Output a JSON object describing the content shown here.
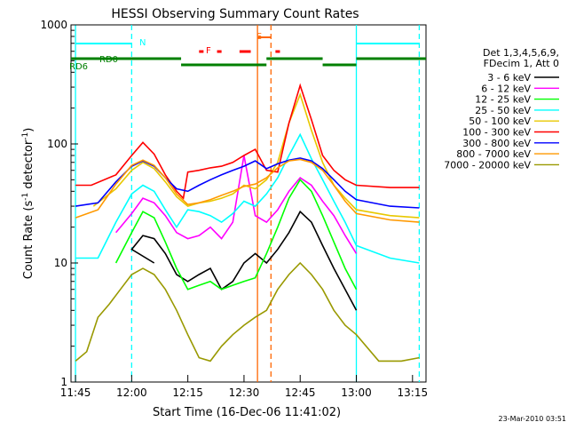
{
  "chart_data": {
    "type": "line",
    "title": "HESSI Observing Summary Count Rates",
    "xlabel": "Start Time (16-Dec-06 11:41:02)",
    "ylabel_main": "Count Rate (s",
    "ylabel_sup1": "-1",
    "ylabel_mid": " detector",
    "ylabel_sup2": "-1",
    "ylabel_end": ")",
    "yscale": "log",
    "ylim": [
      1,
      1000
    ],
    "xlim_minutes": [
      11.73,
      13.31
    ],
    "x_ticks": [
      {
        "label": "11:45",
        "t": 11.75
      },
      {
        "label": "12:00",
        "t": 12.0
      },
      {
        "label": "12:15",
        "t": 12.25
      },
      {
        "label": "12:30",
        "t": 12.5
      },
      {
        "label": "12:45",
        "t": 12.75
      },
      {
        "label": "13:00",
        "t": 13.0
      },
      {
        "label": "13:15",
        "t": 13.25
      }
    ],
    "y_ticks": [
      {
        "label": "1",
        "v": 1
      },
      {
        "label": "10",
        "v": 10
      },
      {
        "label": "100",
        "v": 100
      },
      {
        "label": "1000",
        "v": 1000
      }
    ],
    "legend_header": [
      "Det 1,3,4,5,6,9,",
      "FDecim 1, Att 0"
    ],
    "series": [
      {
        "name": "3 - 6 keV",
        "color": "#000000",
        "points": [
          [
            12.1,
            10
          ],
          [
            12.0,
            13
          ],
          [
            12.05,
            17
          ],
          [
            12.1,
            16
          ],
          [
            12.15,
            12
          ],
          [
            12.2,
            8
          ],
          [
            12.25,
            7
          ],
          [
            12.3,
            8
          ],
          [
            12.35,
            9
          ],
          [
            12.4,
            6
          ],
          [
            12.45,
            7
          ],
          [
            12.5,
            10
          ],
          [
            12.55,
            12
          ],
          [
            12.6,
            10
          ],
          [
            12.65,
            13
          ],
          [
            12.7,
            18
          ],
          [
            12.75,
            27
          ],
          [
            12.8,
            22
          ],
          [
            12.85,
            14
          ],
          [
            12.9,
            9
          ],
          [
            12.95,
            6
          ],
          [
            13.0,
            4
          ]
        ]
      },
      {
        "name": "6 - 12 keV",
        "color": "#ff00ff",
        "points": [
          [
            11.93,
            18
          ],
          [
            12.0,
            26
          ],
          [
            12.05,
            35
          ],
          [
            12.1,
            32
          ],
          [
            12.15,
            25
          ],
          [
            12.2,
            18
          ],
          [
            12.25,
            16
          ],
          [
            12.3,
            17
          ],
          [
            12.35,
            20
          ],
          [
            12.4,
            16
          ],
          [
            12.45,
            22
          ],
          [
            12.5,
            80
          ],
          [
            12.55,
            25
          ],
          [
            12.6,
            22
          ],
          [
            12.65,
            28
          ],
          [
            12.7,
            40
          ],
          [
            12.75,
            52
          ],
          [
            12.8,
            45
          ],
          [
            12.85,
            33
          ],
          [
            12.9,
            25
          ],
          [
            12.95,
            17
          ],
          [
            13.0,
            12
          ]
        ]
      },
      {
        "name": "12 - 25 keV",
        "color": "#00ff00",
        "points": [
          [
            11.93,
            10
          ],
          [
            12.0,
            18
          ],
          [
            12.05,
            27
          ],
          [
            12.1,
            24
          ],
          [
            12.15,
            15
          ],
          [
            12.2,
            9
          ],
          [
            12.25,
            6
          ],
          [
            12.3,
            6.5
          ],
          [
            12.35,
            7
          ],
          [
            12.4,
            6
          ],
          [
            12.45,
            6.5
          ],
          [
            12.5,
            7
          ],
          [
            12.55,
            7.5
          ],
          [
            12.6,
            12
          ],
          [
            12.65,
            20
          ],
          [
            12.7,
            35
          ],
          [
            12.75,
            50
          ],
          [
            12.8,
            40
          ],
          [
            12.85,
            25
          ],
          [
            12.9,
            15
          ],
          [
            12.95,
            9
          ],
          [
            13.0,
            6
          ]
        ]
      },
      {
        "name": "25 - 50 keV",
        "color": "#00ffff",
        "points": [
          [
            11.75,
            11
          ],
          [
            11.85,
            11
          ],
          [
            11.93,
            22
          ],
          [
            12.0,
            38
          ],
          [
            12.05,
            45
          ],
          [
            12.1,
            40
          ],
          [
            12.15,
            28
          ],
          [
            12.2,
            20
          ],
          [
            12.25,
            28
          ],
          [
            12.3,
            27
          ],
          [
            12.35,
            25
          ],
          [
            12.4,
            22
          ],
          [
            12.45,
            26
          ],
          [
            12.5,
            33
          ],
          [
            12.55,
            30
          ],
          [
            12.6,
            38
          ],
          [
            12.65,
            52
          ],
          [
            12.7,
            80
          ],
          [
            12.75,
            120
          ],
          [
            12.8,
            75
          ],
          [
            12.85,
            50
          ],
          [
            12.9,
            33
          ],
          [
            12.95,
            22
          ],
          [
            13.0,
            14
          ],
          [
            13.15,
            11
          ],
          [
            13.28,
            10
          ]
        ]
      },
      {
        "name": "50 - 100 keV",
        "color": "#e8c800",
        "points": [
          [
            11.83,
            30
          ],
          [
            11.93,
            42
          ],
          [
            12.0,
            60
          ],
          [
            12.05,
            70
          ],
          [
            12.1,
            62
          ],
          [
            12.15,
            48
          ],
          [
            12.2,
            36
          ],
          [
            12.25,
            30
          ],
          [
            12.3,
            32
          ],
          [
            12.35,
            33
          ],
          [
            12.4,
            35
          ],
          [
            12.45,
            38
          ],
          [
            12.5,
            45
          ],
          [
            12.55,
            42
          ],
          [
            12.6,
            50
          ],
          [
            12.65,
            70
          ],
          [
            12.7,
            150
          ],
          [
            12.75,
            260
          ],
          [
            12.8,
            130
          ],
          [
            12.85,
            70
          ],
          [
            12.9,
            45
          ],
          [
            12.95,
            35
          ],
          [
            13.0,
            28
          ],
          [
            13.15,
            25
          ],
          [
            13.28,
            24
          ]
        ]
      },
      {
        "name": "100 - 300 keV",
        "color": "#ff0000",
        "points": [
          [
            11.75,
            45
          ],
          [
            11.82,
            45
          ],
          [
            11.93,
            55
          ],
          [
            12.0,
            80
          ],
          [
            12.05,
            103
          ],
          [
            12.1,
            82
          ],
          [
            12.15,
            55
          ],
          [
            12.2,
            40
          ],
          [
            12.23,
            35
          ],
          [
            12.25,
            58
          ],
          [
            12.3,
            60
          ],
          [
            12.35,
            63
          ],
          [
            12.4,
            65
          ],
          [
            12.45,
            70
          ],
          [
            12.5,
            80
          ],
          [
            12.55,
            90
          ],
          [
            12.6,
            60
          ],
          [
            12.65,
            58
          ],
          [
            12.7,
            150
          ],
          [
            12.75,
            310
          ],
          [
            12.8,
            160
          ],
          [
            12.85,
            80
          ],
          [
            12.9,
            60
          ],
          [
            12.95,
            50
          ],
          [
            13.0,
            45
          ],
          [
            13.15,
            43
          ],
          [
            13.28,
            43
          ]
        ]
      },
      {
        "name": "300 - 800 keV",
        "color": "#0000ff",
        "points": [
          [
            11.75,
            30
          ],
          [
            11.85,
            32
          ],
          [
            11.93,
            48
          ],
          [
            12.0,
            65
          ],
          [
            12.05,
            72
          ],
          [
            12.1,
            65
          ],
          [
            12.15,
            52
          ],
          [
            12.2,
            42
          ],
          [
            12.25,
            40
          ],
          [
            12.3,
            45
          ],
          [
            12.35,
            50
          ],
          [
            12.4,
            55
          ],
          [
            12.45,
            60
          ],
          [
            12.5,
            65
          ],
          [
            12.55,
            72
          ],
          [
            12.6,
            62
          ],
          [
            12.65,
            68
          ],
          [
            12.7,
            73
          ],
          [
            12.75,
            76
          ],
          [
            12.8,
            72
          ],
          [
            12.85,
            62
          ],
          [
            12.9,
            50
          ],
          [
            12.95,
            40
          ],
          [
            13.0,
            34
          ],
          [
            13.15,
            30
          ],
          [
            13.28,
            29
          ]
        ]
      },
      {
        "name": "800 - 7000 keV",
        "color": "#ff9900",
        "points": [
          [
            11.75,
            24
          ],
          [
            11.85,
            28
          ],
          [
            11.93,
            46
          ],
          [
            12.0,
            66
          ],
          [
            12.05,
            73
          ],
          [
            12.1,
            66
          ],
          [
            12.15,
            52
          ],
          [
            12.2,
            38
          ],
          [
            12.25,
            31
          ],
          [
            12.3,
            32
          ],
          [
            12.35,
            34
          ],
          [
            12.4,
            37
          ],
          [
            12.45,
            40
          ],
          [
            12.5,
            44
          ],
          [
            12.55,
            46
          ],
          [
            12.6,
            52
          ],
          [
            12.65,
            63
          ],
          [
            12.7,
            72
          ],
          [
            12.75,
            74
          ],
          [
            12.8,
            70
          ],
          [
            12.85,
            60
          ],
          [
            12.9,
            45
          ],
          [
            12.95,
            33
          ],
          [
            13.0,
            26
          ],
          [
            13.15,
            23
          ],
          [
            13.28,
            22
          ]
        ]
      },
      {
        "name": "7000 - 20000 keV",
        "color": "#999900",
        "points": [
          [
            11.75,
            1.5
          ],
          [
            11.8,
            1.8
          ],
          [
            11.85,
            3.5
          ],
          [
            11.9,
            4.5
          ],
          [
            11.95,
            6
          ],
          [
            12.0,
            8
          ],
          [
            12.05,
            9
          ],
          [
            12.1,
            8
          ],
          [
            12.15,
            6
          ],
          [
            12.2,
            4
          ],
          [
            12.25,
            2.5
          ],
          [
            12.3,
            1.6
          ],
          [
            12.35,
            1.5
          ],
          [
            12.4,
            2
          ],
          [
            12.45,
            2.5
          ],
          [
            12.5,
            3
          ],
          [
            12.55,
            3.5
          ],
          [
            12.6,
            4
          ],
          [
            12.65,
            6
          ],
          [
            12.7,
            8
          ],
          [
            12.75,
            10
          ],
          [
            12.8,
            8
          ],
          [
            12.85,
            6
          ],
          [
            12.9,
            4
          ],
          [
            12.95,
            3
          ],
          [
            13.0,
            2.5
          ],
          [
            13.1,
            1.5
          ],
          [
            13.2,
            1.5
          ],
          [
            13.28,
            1.6
          ]
        ]
      }
    ],
    "annotations": {
      "labels": [
        {
          "text": "N",
          "color": "#00ffff"
        },
        {
          "text": "S",
          "color": "#ff6600"
        },
        {
          "text": "F",
          "color": "#ff0000"
        },
        {
          "text": "RD0",
          "color": "#008000"
        },
        {
          "text": "RD6",
          "color": "#008000"
        }
      ]
    },
    "timestamp": "23-Mar-2010 03:51"
  }
}
